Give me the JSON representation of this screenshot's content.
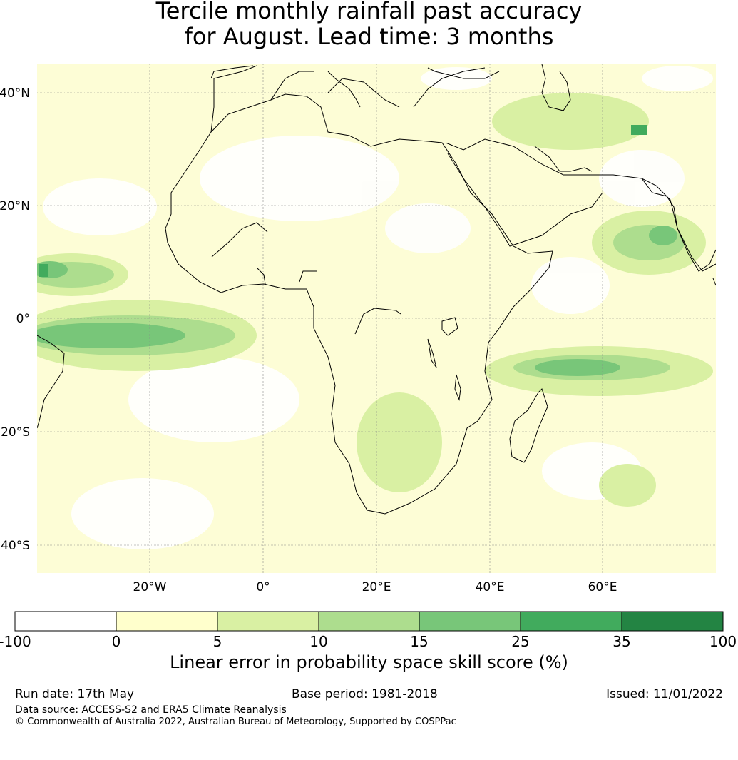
{
  "title": {
    "line1": "Tercile monthly rainfall past accuracy",
    "line2": "for August. Lead time: 3 months"
  },
  "map": {
    "lat_labels": [
      "40°N",
      "20°N",
      "0°",
      "20°S",
      "40°S"
    ],
    "lon_labels": [
      "20°W",
      "0°",
      "20°E",
      "40°E",
      "60°E"
    ],
    "land_outline_color": "#000000",
    "grid_color": "#888888"
  },
  "colorbar": {
    "ticks": [
      "-100",
      "0",
      "5",
      "10",
      "15",
      "25",
      "35",
      "100"
    ],
    "colors": [
      "#ffffff",
      "#ffffcc",
      "#d9f0a3",
      "#addd8e",
      "#78c679",
      "#41ab5d",
      "#238443"
    ],
    "label": "Linear error in probability space skill score (%)"
  },
  "footer": {
    "run_date": "Run date: 17th May",
    "base_period": "Base period: 1981-2018",
    "issued": "Issued: 11/01/2022",
    "data_source": "Data source: ACCESS-S2 and ERA5 Climate Reanalysis",
    "copyright": "© Commonwealth of Australia 2022, Australian Bureau of Meteorology, Supported by COSPPac"
  }
}
